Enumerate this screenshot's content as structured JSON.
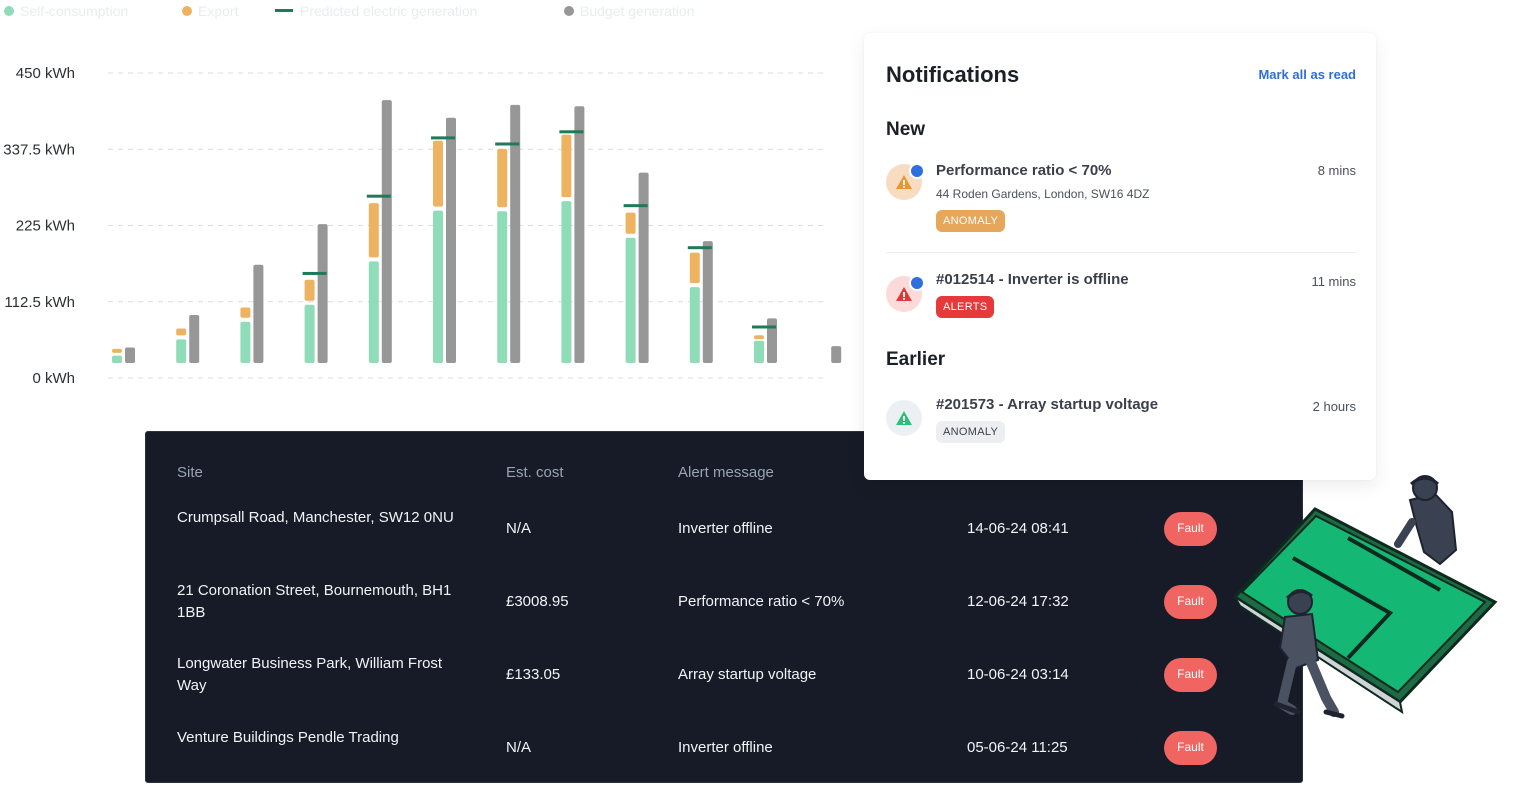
{
  "chart_data": {
    "type": "bar",
    "legend": [
      "Self-consumption",
      "Export",
      "Predicted electric generation",
      "Budget generation"
    ],
    "y_ticks": [
      "450 kWh",
      "337.5 kWh",
      "225 kWh",
      "112.5 kWh",
      "0 kWh"
    ],
    "ylim": [
      0,
      450
    ],
    "grid": true,
    "legend_position": "top-left",
    "colors": {
      "self_consumption": "#8fdcb8",
      "export": "#eeb360",
      "predicted": "#1f7a57",
      "budget": "#979797"
    },
    "months": 12,
    "series": [
      {
        "name": "Self-consumption",
        "values": [
          33,
          57,
          83,
          108,
          172,
          247,
          246,
          261,
          207,
          134,
          55,
          null
        ]
      },
      {
        "name": "Export",
        "values": [
          10,
          16,
          21,
          37,
          86,
          103,
          92,
          98,
          37,
          51,
          8,
          null
        ]
      },
      {
        "name": "Predicted electric generation",
        "values": [
          null,
          null,
          null,
          155,
          269,
          355,
          346,
          364,
          255,
          193,
          76,
          null
        ]
      },
      {
        "name": "Budget generation",
        "values": [
          45,
          93,
          167,
          227,
          410,
          384,
          403,
          401,
          303,
          202,
          88,
          47
        ]
      }
    ]
  },
  "table": {
    "headers": {
      "site": "Site",
      "cost": "Est. cost",
      "message": "Alert message"
    },
    "rows": [
      {
        "site": "Crumpsall Road, Manchester, SW12 0NU",
        "cost": "N/A",
        "message": "Inverter offline",
        "date": "14-06-24 08:41",
        "status": "Fault"
      },
      {
        "site": "21 Coronation Street, Bournemouth, BH1 1BB",
        "cost": "£3008.95",
        "message": "Performance ratio < 70%",
        "date": "12-06-24 17:32",
        "status": "Fault"
      },
      {
        "site": "Longwater Business Park, William Frost Way",
        "cost": "£133.05",
        "message": "Array startup voltage",
        "date": "10-06-24 03:14",
        "status": "Fault"
      },
      {
        "site": "Venture Buildings Pendle Trading",
        "cost": "N/A",
        "message": "Inverter offline",
        "date": "05-06-24 11:25",
        "status": "Fault"
      }
    ]
  },
  "notifications": {
    "title": "Notifications",
    "mark_all_label": "Mark all as read",
    "new_heading": "New",
    "earlier_heading": "Earlier",
    "items": [
      {
        "title": "Performance ratio < 70%",
        "subtitle": "44 Roden Gardens, London, SW16 4DZ",
        "tag": "ANOMALY",
        "time": "8 mins",
        "icon": "warning-icon",
        "unread": true
      },
      {
        "title": "#012514 - Inverter is offline",
        "subtitle": "",
        "tag": "ALERTS",
        "time": "11 mins",
        "icon": "alert-icon",
        "unread": true
      },
      {
        "title": "#201573 - Array startup voltage",
        "subtitle": "",
        "tag": "ANOMALY",
        "time": "2 hours",
        "icon": "warning-icon",
        "unread": false
      }
    ]
  }
}
